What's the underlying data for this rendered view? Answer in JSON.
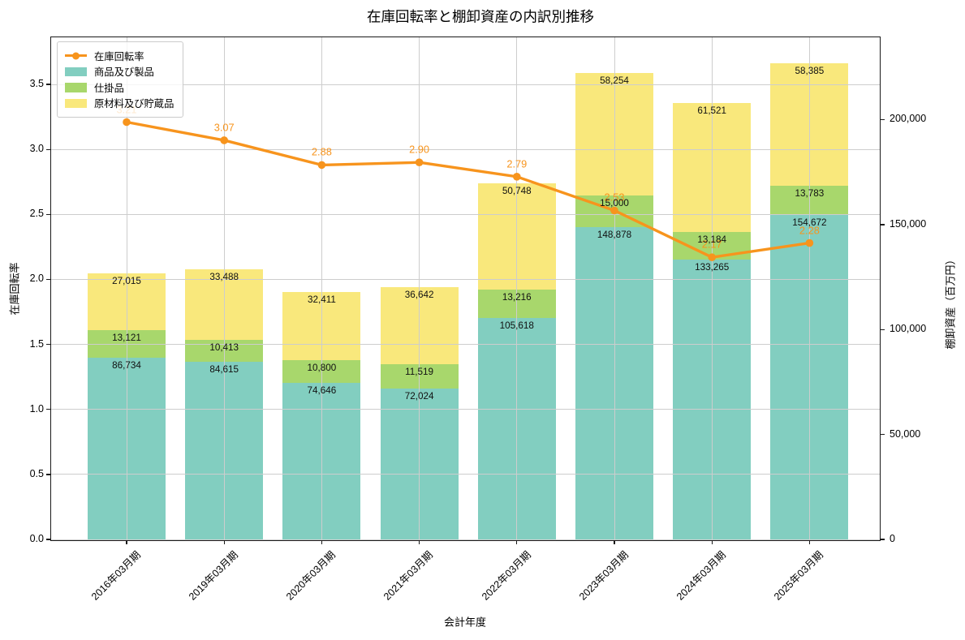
{
  "title": "在庫回転率と棚卸資産の内訳別推移",
  "chart_data": {
    "type": "bar",
    "subtype": "stacked-bar-with-line",
    "categories": [
      "2016年03月期",
      "2019年03月期",
      "2020年03月期",
      "2021年03月期",
      "2022年03月期",
      "2023年03月期",
      "2024年03月期",
      "2025年03月期"
    ],
    "line_series": {
      "name": "在庫回転率",
      "axis": "left",
      "color": "#f7941d",
      "values": [
        3.21,
        3.07,
        2.88,
        2.9,
        2.79,
        2.53,
        2.17,
        2.28
      ]
    },
    "bar_series": [
      {
        "name": "商品及び製品",
        "color": "#82cec0",
        "values": [
          86734,
          84615,
          74646,
          72024,
          105618,
          148878,
          133265,
          154672
        ]
      },
      {
        "name": "仕掛品",
        "color": "#a8d76c",
        "values": [
          13121,
          10413,
          10800,
          11519,
          13216,
          15000,
          13184,
          13783
        ]
      },
      {
        "name": "原材料及び貯蔵品",
        "color": "#f9e87c",
        "values": [
          27015,
          33488,
          32411,
          36642,
          50748,
          58254,
          61521,
          58385
        ]
      }
    ],
    "xlabel": "会計年度",
    "ylabel_left": "在庫回転率",
    "ylabel_right": "棚卸資産（百万円）",
    "left_axis": {
      "tick_values": [
        0.0,
        0.5,
        1.0,
        1.5,
        2.0,
        2.5,
        3.0,
        3.5
      ],
      "tick_labels": [
        "0.0",
        "0.5",
        "1.0",
        "1.5",
        "2.0",
        "2.5",
        "3.0",
        "3.5"
      ],
      "ylim": [
        0,
        3.862
      ]
    },
    "right_axis": {
      "tick_values": [
        0,
        50000,
        100000,
        150000,
        200000
      ],
      "tick_labels": [
        "0",
        "50,000",
        "100,000",
        "150,000",
        "200,000"
      ],
      "ylim": [
        0,
        239200
      ]
    },
    "legend_position": "upper left",
    "grid": true,
    "grid_color": "#cdcdcd"
  }
}
